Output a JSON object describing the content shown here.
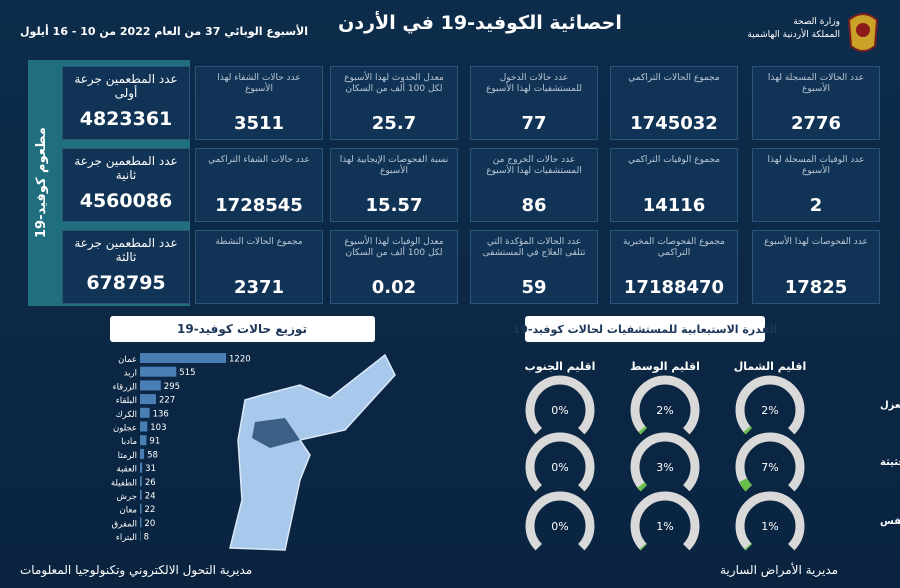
{
  "header": {
    "title": "احصائية الكوفيد-19 في الأردن",
    "subtitle": "الأسبوع الوبائي  37 من العام 2022 من  10 - 16 أيلول",
    "ministry": "وزارة الصحة",
    "kingdom": "المملكة الأردنية الهاشمية"
  },
  "cards": [
    {
      "label": "عدد الحالات المسجلة لهذا الأسبوع",
      "value": 2776
    },
    {
      "label": "مجموع الحالات التراكمي",
      "value": 1745032
    },
    {
      "label": "عدد حالات الدخول للمستشفيات لهذا الأسبوع",
      "value": 77
    },
    {
      "label": "معدل الحدوث لهذا الأسبوع لكل 100 ألف من السكان",
      "value": 25.7
    },
    {
      "label": "عدد حالات الشفاء لهذا الأسبوع",
      "value": 3511
    },
    {
      "label": "عدد الوفيات المسجلة لهذا الأسبوع",
      "value": 2
    },
    {
      "label": "مجموع الوفيات التراكمي",
      "value": 14116
    },
    {
      "label": "عدد حالات الخروج من المستشفيات لهذا الأسبوع",
      "value": 86
    },
    {
      "label": "نسبة الفحوصات الإيجابية لهذا الأسبوع",
      "value": 15.57
    },
    {
      "label": "عدد حالات الشفاء التراكمي",
      "value": 1728545
    },
    {
      "label": "عدد الفحوصات لهذا الأسبوع",
      "value": 17825
    },
    {
      "label": "مجموع الفحوصات المخبرية التراكمي",
      "value": 17188470
    },
    {
      "label": "عدد الحالات المؤكدة التي تتلقى العلاج في المستشفى",
      "value": 59
    },
    {
      "label": "معدل الوفيات لهذا الأسبوع لكل 100 ألف من السكان",
      "value": 0.02
    },
    {
      "label": "مجموع الحالات النشطة",
      "value": 2371
    }
  ],
  "vaccine": {
    "title": "مطعوم كوفيد-19",
    "cards": [
      {
        "label": "عدد المطعمين جرعة أولى",
        "value": 4823361
      },
      {
        "label": "عدد المطعمين جرعة ثانية",
        "value": 4560086
      },
      {
        "label": "عدد المطعمين جرعة ثالثة",
        "value": 678795
      }
    ]
  },
  "chart_data": [
    {
      "type": "bar",
      "title": "توزيع حالات كوفيد-19",
      "color": "#4a7fb5",
      "categories": [
        "عمان",
        "اربد",
        "الزرقاء",
        "البلقاء",
        "الكرك",
        "عجلون",
        "مادبا",
        "الرمثا",
        "العقبة",
        "الطفيلة",
        "جرش",
        "معان",
        "المفرق",
        "البتراء"
      ],
      "values": [
        1220,
        515,
        295,
        227,
        136,
        103,
        91,
        58,
        31,
        26,
        24,
        22,
        20,
        8
      ]
    },
    {
      "type": "gauge",
      "title": "القدرة الاستيعابية للمستشفيات لحالات كوفيد-19",
      "color": "#6abf4b",
      "ylim": [
        0,
        100
      ],
      "categories": [
        "نسبة اشغال اسرة العزل",
        "نسبة اشغال اسرة العناية الحثيثة",
        "نسبة اشغال اجهزة التنفس"
      ],
      "series": [
        {
          "name": "اقليم الشمال",
          "values": [
            2,
            7,
            1
          ],
          "value_labels": [
            "2%",
            "7%",
            "1%"
          ]
        },
        {
          "name": "اقليم الوسط",
          "values": [
            2,
            3,
            1
          ],
          "value_labels": [
            "2%",
            "3%",
            "1%"
          ]
        },
        {
          "name": "اقليم الجنوب",
          "values": [
            0,
            0,
            0
          ],
          "value_labels": [
            "0%",
            "0%",
            "0%"
          ]
        }
      ]
    }
  ],
  "footer": {
    "left": "مديرية التحول الالكتروني وتكنولوجيا المعلومات",
    "right": "مديرية الأمراض السارية"
  }
}
